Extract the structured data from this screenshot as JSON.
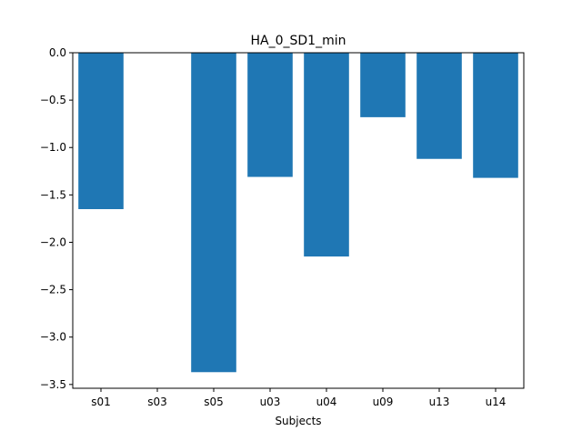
{
  "chart_data": {
    "type": "bar",
    "title": "HA_0_SD1_min",
    "xlabel": "Subjects",
    "ylabel": "",
    "categories": [
      "s01",
      "s03",
      "s05",
      "u03",
      "u04",
      "u09",
      "u13",
      "u14"
    ],
    "values": [
      -1.65,
      0.0,
      -3.37,
      -1.31,
      -2.15,
      -0.68,
      -1.12,
      -1.32
    ],
    "ylim": [
      -3.54,
      0.0
    ],
    "yticks": [
      0.0,
      -0.5,
      -1.0,
      -1.5,
      -2.0,
      -2.5,
      -3.0,
      -3.5
    ],
    "ytick_labels": [
      "0.0",
      "−0.5",
      "−1.0",
      "−1.5",
      "−2.0",
      "−2.5",
      "−3.0",
      "−3.5"
    ],
    "bar_color": "#1f77b4",
    "grid": false,
    "legend": "none"
  }
}
